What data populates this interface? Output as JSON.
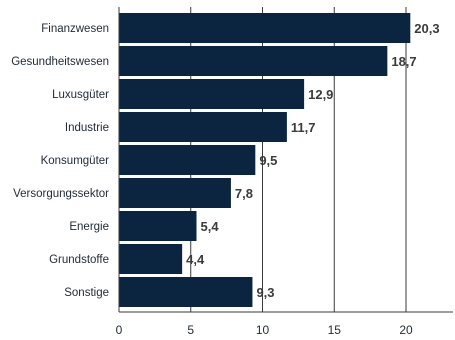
{
  "chart_data": {
    "type": "bar",
    "orientation": "horizontal",
    "categories": [
      "Finanzwesen",
      "Gesundheitswesen",
      "Luxusgüter",
      "Industrie",
      "Konsumgüter",
      "Versorgungssektor",
      "Energie",
      "Grundstoffe",
      "Sonstige"
    ],
    "values": [
      20.3,
      18.7,
      12.9,
      11.7,
      9.5,
      7.8,
      5.4,
      4.4,
      9.3
    ],
    "value_labels": [
      "20,3",
      "18,7",
      "12,9",
      "11,7",
      "9,5",
      "7,8",
      "5,4",
      "4,4",
      "9,3"
    ],
    "x_ticks": [
      0,
      5,
      10,
      15,
      20
    ],
    "xlim": [
      0,
      23
    ],
    "grid": "vertical",
    "bar_color": "#0b2540",
    "title": "",
    "xlabel": "",
    "ylabel": ""
  }
}
